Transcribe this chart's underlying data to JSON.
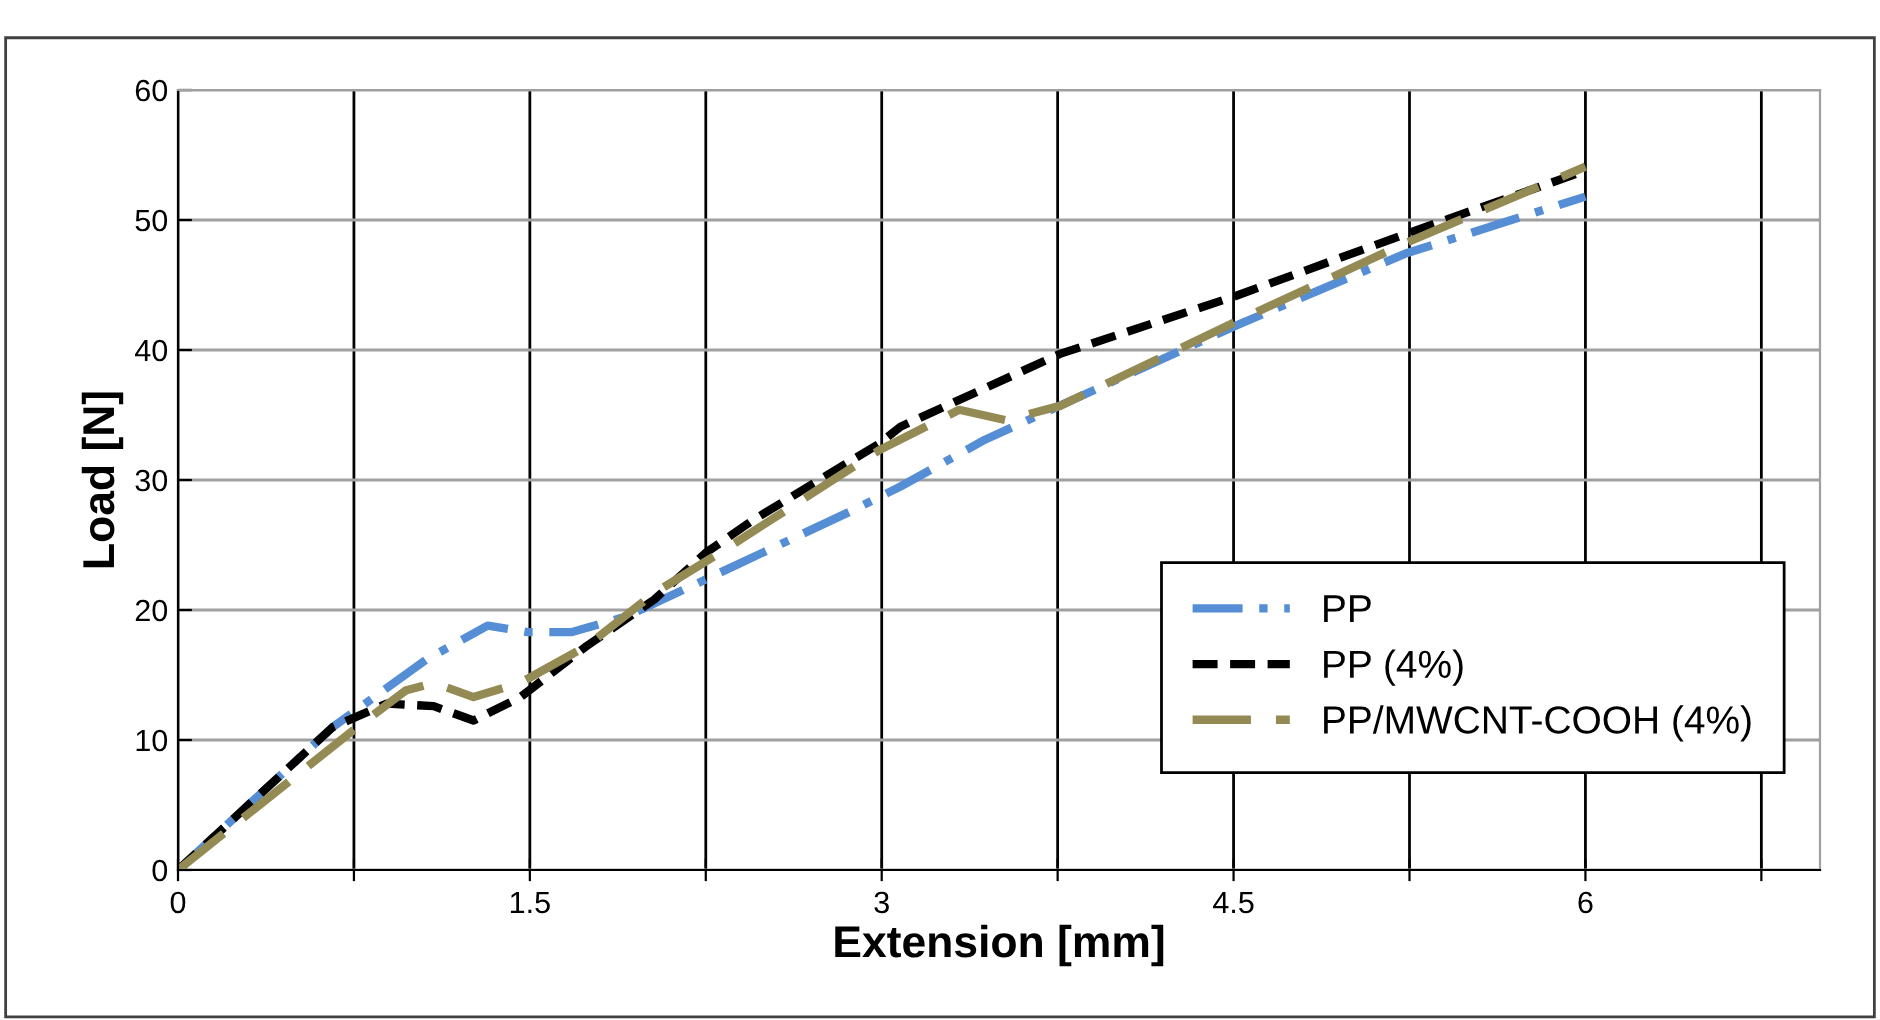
{
  "chart_data": {
    "type": "line",
    "xlabel": "Extension [mm]",
    "ylabel": "Load [N]",
    "xlim": [
      0,
      7
    ],
    "xticks": [
      0,
      {
        "value": 0.75,
        "label": null
      },
      1.5,
      {
        "value": 2.25,
        "label": null
      },
      3,
      {
        "value": 3.75,
        "label": null
      },
      4.5,
      {
        "value": 5.25,
        "label": null
      },
      6,
      {
        "value": 6.75,
        "label": null
      }
    ],
    "ylim": [
      0,
      60
    ],
    "yticks": [
      0,
      10,
      20,
      30,
      40,
      50,
      60
    ],
    "grid": true,
    "legend": "lower right",
    "marker": "none",
    "series": [
      {
        "name": "PP",
        "color": "#558ed5",
        "line_style": "dashdot",
        "x": [
          0,
          0.66,
          1.06,
          1.32,
          1.49,
          1.68,
          1.91,
          2.22,
          2.88,
          3.08,
          3.44,
          4.5,
          5.23,
          6.0
        ],
        "values": [
          0,
          11.0,
          16.2,
          18.8,
          18.3,
          18.3,
          19.5,
          22.1,
          27.7,
          29.5,
          33.1,
          41.8,
          47.4,
          51.8
        ]
      },
      {
        "name": "PP (4%)",
        "color": "#000000",
        "line_style": "dashed",
        "x": [
          0,
          0.66,
          0.89,
          1.09,
          1.26,
          1.46,
          1.74,
          2.03,
          2.25,
          2.45,
          2.99,
          3.08,
          3.76,
          4.5,
          5.23,
          6.0
        ],
        "values": [
          0,
          11.0,
          12.8,
          12.6,
          11.5,
          13.3,
          17.2,
          20.8,
          24.4,
          26.9,
          32.8,
          34.1,
          39.7,
          44.1,
          48.9,
          53.8
        ]
      },
      {
        "name": "PP/MWCNT-COOH (4%)",
        "color": "#948a54",
        "line_style": "longdash",
        "x": [
          0,
          0.75,
          0.97,
          1.09,
          1.26,
          1.46,
          1.74,
          2.03,
          2.31,
          2.99,
          3.33,
          3.53,
          3.76,
          4.5,
          5.23,
          6.0
        ],
        "values": [
          0,
          10.8,
          13.8,
          14.4,
          13.3,
          14.4,
          17.2,
          21.3,
          24.4,
          32.3,
          35.4,
          34.6,
          35.7,
          42.1,
          48.2,
          54.1
        ]
      }
    ]
  }
}
